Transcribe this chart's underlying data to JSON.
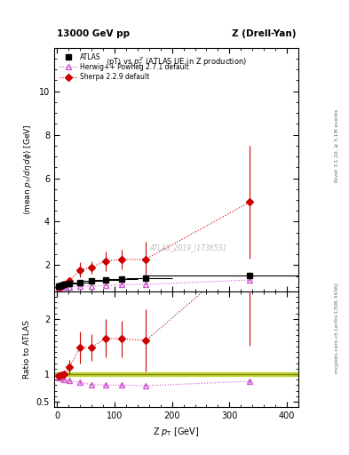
{
  "title_top_left": "13000 GeV pp",
  "title_top_right": "Z (Drell-Yan)",
  "main_title": "<pT> vs $p^Z_T$ (ATLAS UE in Z production)",
  "xlabel": "Z p_{T} [GeV]",
  "ylabel_main": "<mean p_{T}/d\\u03b7 d\\u03d5> [GeV]",
  "ylabel_ratio": "Ratio to ATLAS",
  "watermark": "ATLAS_2019_I1736531",
  "right_label_top": "Rivet 3.1.10, ≥ 3.1M events",
  "right_label_bottom": "mcplots.cern.ch [arXiv:1306.3436]",
  "atlas_x": [
    3,
    7,
    12,
    22,
    40,
    60,
    85,
    112,
    155,
    335
  ],
  "atlas_y": [
    1.03,
    1.06,
    1.1,
    1.15,
    1.2,
    1.28,
    1.33,
    1.37,
    1.42,
    1.52
  ],
  "atlas_yerr": [
    0.04,
    0.04,
    0.04,
    0.04,
    0.05,
    0.06,
    0.06,
    0.07,
    0.08,
    0.12
  ],
  "atlas_xerr_lo": [
    3,
    5,
    7,
    12,
    15,
    20,
    25,
    27,
    35,
    185
  ],
  "atlas_xerr_hi": [
    3,
    5,
    8,
    13,
    20,
    20,
    25,
    28,
    45,
    165
  ],
  "herwig_x": [
    3,
    7,
    12,
    22,
    40,
    60,
    85,
    112,
    155,
    335
  ],
  "herwig_y": [
    0.96,
    0.99,
    1.0,
    1.01,
    1.02,
    1.04,
    1.07,
    1.1,
    1.12,
    1.32
  ],
  "herwig_yerr": [
    0.01,
    0.01,
    0.01,
    0.01,
    0.01,
    0.01,
    0.01,
    0.02,
    0.02,
    0.05
  ],
  "sherpa_x": [
    3,
    7,
    12,
    22,
    40,
    60,
    85,
    112,
    155,
    335
  ],
  "sherpa_y": [
    1.0,
    1.04,
    1.1,
    1.3,
    1.78,
    1.9,
    2.2,
    2.25,
    2.28,
    4.9
  ],
  "sherpa_yerr": [
    0.02,
    0.04,
    0.08,
    0.15,
    0.35,
    0.3,
    0.45,
    0.45,
    0.8,
    2.6
  ],
  "herwig_ratio": [
    0.93,
    0.93,
    0.91,
    0.88,
    0.85,
    0.81,
    0.8,
    0.8,
    0.79,
    0.87
  ],
  "herwig_ratio_err": [
    0.02,
    0.02,
    0.02,
    0.02,
    0.02,
    0.02,
    0.02,
    0.02,
    0.02,
    0.04
  ],
  "sherpa_ratio": [
    0.97,
    0.98,
    1.0,
    1.13,
    1.48,
    1.48,
    1.65,
    1.64,
    1.61,
    3.22
  ],
  "sherpa_ratio_err": [
    0.03,
    0.04,
    0.07,
    0.13,
    0.29,
    0.24,
    0.35,
    0.33,
    0.57,
    1.7
  ],
  "main_ylim": [
    0.8,
    12.0
  ],
  "ratio_ylim": [
    0.4,
    2.5
  ],
  "xlim": [
    -5,
    420
  ],
  "main_yticks": [
    2,
    4,
    6,
    8,
    10
  ],
  "main_ytick_labels": [
    "2",
    "4",
    "6",
    "8",
    "10"
  ],
  "ratio_yticks": [
    0.5,
    1,
    2
  ],
  "xticks": [
    0,
    100,
    200,
    300,
    400
  ],
  "atlas_color": "black",
  "herwig_color": "#cc55cc",
  "sherpa_color": "#cc0000",
  "ratio_band_color": "#aacc00",
  "ratio_line_color": "#888800"
}
